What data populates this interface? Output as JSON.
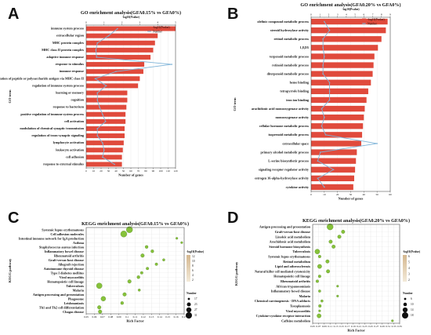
{
  "labels": {
    "A": "A",
    "B": "B",
    "C": "C",
    "D": "D"
  },
  "colors": {
    "bar": "#e04a3c",
    "line": "#7fb4d8",
    "spike": "#45b8e6",
    "grid": "#e6e6e6",
    "bubble": "#86c23a",
    "bubbleDark": "#3f6a1c",
    "scaleTop": "#d4b78f",
    "scaleBottom": "#f3ead9"
  },
  "chart_data": [
    {
      "type": "bar",
      "title": "GO enrichment analysis(GFA0.15% vs GFA0%)",
      "top_axis_label": "-log10(Pvalue)",
      "top_ticks": [
        "0",
        "1",
        "2",
        "3",
        "4",
        "5"
      ],
      "top_max": 5,
      "bottom_ticks": [
        "0",
        "10",
        "20",
        "30",
        "40",
        "50",
        "60",
        "70",
        "80",
        "90",
        "100",
        "110",
        "120"
      ],
      "bottom_max": 120,
      "xlabel": "Number of genes",
      "ylabel": "GO term",
      "legend": [
        "-log10(Pvalue)",
        "Number"
      ],
      "categories": [
        "immune system process",
        "extracellular region",
        "MHC protein complex",
        "MHC class II protein complex",
        "adaptive immune response",
        "response to stimulus",
        "immune response",
        "antigen processing and presentation of peptide or polysaccharide antigen via MHC class II",
        "regulation of immune system process",
        "learning or memory",
        "cognition",
        "response to bacterium",
        "positive regulation of immune system process",
        "cell activation",
        "modulation of chemical synaptic transmission",
        "regulation of trans-synaptic signaling",
        "lymphocyte activation",
        "leukocyte activation",
        "cell adhesion",
        "response to external stimulus"
      ],
      "series": [
        {
          "name": "-log10(Pvalue)",
          "values": [
            5.0,
            4.0,
            3.85,
            3.75,
            3.6,
            3.25,
            3.2,
            3.0,
            2.9,
            2.3,
            2.3,
            2.25,
            2.2,
            2.2,
            2.15,
            2.15,
            2.1,
            2.05,
            2.0,
            2.0
          ]
        },
        {
          "name": "Number",
          "values": [
            42,
            30,
            15,
            13,
            14,
            115,
            40,
            12,
            27,
            15,
            15,
            18,
            22,
            26,
            15,
            15,
            22,
            24,
            22,
            38
          ]
        }
      ]
    },
    {
      "type": "bar",
      "title": "GO enrichment analysis(GFA0.20% vs GFA0%)",
      "top_axis_label": "-log10(Pvalue)",
      "top_ticks": [
        "0",
        "1",
        "2",
        "3",
        "4",
        "5",
        "6",
        "7",
        "8",
        "9"
      ],
      "top_max": 9,
      "bottom_ticks": [
        "0",
        "10",
        "20",
        "30",
        "40",
        "50",
        "60"
      ],
      "bottom_max": 60,
      "xlabel": "Number of genes",
      "ylabel": "GO term",
      "legend": [
        "-log10(Pvalue)",
        "Number"
      ],
      "categories": [
        "olefinic compound metabolic process",
        "steroid hydroxylase activity",
        "retinol metabolic process",
        "1,8,D5",
        "terpenoid metabolic process",
        "retinoid metabolic process",
        "diterpenoid metabolic process",
        "heme binding",
        "tetrapyrrole binding",
        "iron ion binding",
        "arachidonic acid monooxygenase activity",
        "monooxygenase activity",
        "cellular hormone metabolic process",
        "isoprenoid metabolic process",
        "extracellular space",
        "primary alcohol metabolic process",
        "L-serine biosynthetic process",
        "signaling receptor regulator activity",
        "estrogen 16-alpha-hydroxylase activity",
        "cytokine activity"
      ],
      "series": [
        {
          "name": "-log10(Pvalue)",
          "values": [
            8.7,
            8.5,
            8.0,
            7.6,
            7.2,
            7.1,
            7.0,
            6.8,
            6.5,
            6.3,
            6.1,
            6.0,
            5.9,
            5.8,
            5.7,
            5.2,
            5.1,
            5.0,
            4.9,
            4.8
          ]
        },
        {
          "name": "Number",
          "values": [
            10,
            14,
            9,
            9,
            10,
            9,
            9,
            14,
            14,
            14,
            8,
            10,
            8,
            11,
            50,
            7,
            5,
            17,
            5,
            10
          ]
        }
      ]
    },
    {
      "type": "scatter",
      "title": "KEGG enrichment analysis(GFA0.15% vs GFA0%)",
      "xlabel": "Rich Factor",
      "ylabel": "KEGG pathway",
      "x_ticks": [
        0.05,
        0.06,
        0.07,
        0.08,
        0.09,
        0.1,
        0.11,
        0.12,
        0.13,
        0.14,
        0.15,
        0.16,
        0.17
      ],
      "xlim": [
        0.05,
        0.17
      ],
      "color_legend_title": "-log10(Pvalue)",
      "color_scale_ticks": [
        "12",
        "10",
        "8",
        "6",
        "4",
        "2"
      ],
      "size_legend_title": "Number",
      "size_legend": [
        {
          "label": "17",
          "value": 17
        },
        {
          "label": "23",
          "value": 23
        },
        {
          "label": "27",
          "value": 27
        },
        {
          "label": "31",
          "value": 31
        }
      ],
      "categories": [
        "Systemic lupus erythematosus",
        "Cell adhesion molecules",
        "Intestinal immune network for IgA production",
        "Asthma",
        "Staphylococcus aureus infection",
        "Inflammatory bowel disease",
        "Rheumatoid arthritis",
        "Graft-versus-host disease",
        "Allograft rejection",
        "Autoimmune thyroid disease",
        "Type I diabetes mellitus",
        "Viral myocarditis",
        "Hematopoietic cell lineage",
        "Tuberculosis",
        "Malaria",
        "Antigen processing and presentation",
        "Phagosome",
        "Leishmaniasis",
        "Th1 and Th2 cell differentiation",
        "Chagas disease"
      ],
      "x": [
        0.103,
        0.096,
        0.161,
        0.167,
        0.124,
        0.131,
        0.119,
        0.145,
        0.136,
        0.125,
        0.118,
        0.114,
        0.103,
        0.066,
        0.115,
        0.097,
        0.071,
        0.094,
        0.066,
        0.067
      ],
      "size_values": [
        31,
        31,
        17,
        17,
        20,
        20,
        22,
        18,
        19,
        19,
        19,
        20,
        22,
        29,
        18,
        22,
        26,
        20,
        22,
        22
      ]
    },
    {
      "type": "scatter",
      "title": "KEGG enrichment analysis(GFA0.20% vs GFA0%)",
      "xlabel": "Rich Factor",
      "ylabel": "KEGG pathway",
      "x_ticks": [
        0.05,
        0.07,
        0.09,
        0.11,
        0.13,
        0.15,
        0.17,
        0.19,
        0.21,
        0.23,
        0.25,
        0.27,
        0.29,
        0.31,
        0.33,
        0.35
      ],
      "xlim": [
        0.05,
        0.35
      ],
      "color_legend_title": "-log10(Pvalue)",
      "color_scale_ticks": [
        "6",
        "5",
        "4",
        "3",
        "2"
      ],
      "size_legend_title": "Number",
      "size_legend": [
        {
          "label": "6",
          "value": 6
        },
        {
          "label": "10",
          "value": 10
        },
        {
          "label": "14",
          "value": 14
        },
        {
          "label": "18",
          "value": 18
        }
      ],
      "categories": [
        "Antigen processing and presentation",
        "Graft-versus-host disease",
        "Linoleic acid metabolism",
        "Arachidonic acid metabolism",
        "Steroid hormone biosynthesis",
        "Tuberculosis",
        "Systemic lupus erythematosus",
        "Retinol metabolism",
        "Lipid and atherosclerosis",
        "Natural killer cell mediated cytotoxicity",
        "Hematopoietic cell lineage",
        "Rheumatoid arthritis",
        "African trypanosomiasis",
        "Inflammatory bowel disease",
        "Malaria",
        "Chemical carcinogenesis - DNA adducts",
        "Toxoplasmosis",
        "Viral myocarditis",
        "Cytokine-cytokine receptor interaction",
        "Caffeine metabolism"
      ],
      "x": [
        0.11,
        0.155,
        0.142,
        0.112,
        0.122,
        0.066,
        0.074,
        0.101,
        0.074,
        0.103,
        0.074,
        0.066,
        0.136,
        0.074,
        0.136,
        0.082,
        0.075,
        0.074,
        0.072,
        0.325
      ],
      "size_values": [
        18,
        10,
        10,
        10,
        10,
        14,
        8,
        10,
        12,
        10,
        8,
        8,
        6,
        7,
        6,
        7,
        8,
        6,
        12,
        6
      ]
    }
  ]
}
